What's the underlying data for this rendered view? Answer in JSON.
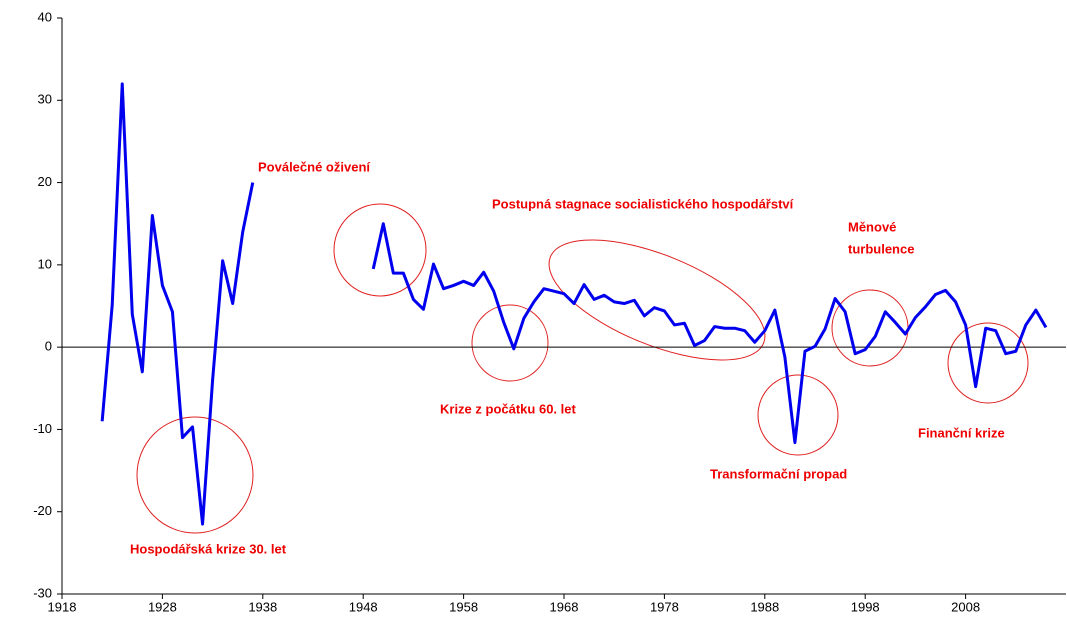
{
  "chart_data": {
    "type": "line",
    "x": [
      1922,
      1923,
      1924,
      1925,
      1926,
      1927,
      1928,
      1929,
      1930,
      1931,
      1932,
      1933,
      1934,
      1935,
      1936,
      1937,
      1938,
      1939,
      1940,
      1941,
      1942,
      1943,
      1944,
      1945,
      1946,
      1947,
      1948,
      1949,
      1950,
      1951,
      1952,
      1953,
      1954,
      1955,
      1956,
      1957,
      1958,
      1959,
      1960,
      1961,
      1962,
      1963,
      1964,
      1965,
      1966,
      1967,
      1968,
      1969,
      1970,
      1971,
      1972,
      1973,
      1974,
      1975,
      1976,
      1977,
      1978,
      1979,
      1980,
      1981,
      1982,
      1983,
      1984,
      1985,
      1986,
      1987,
      1988,
      1989,
      1990,
      1991,
      1992,
      1993,
      1994,
      1995,
      1996,
      1997,
      1998,
      1999,
      2000,
      2001,
      2002,
      2003,
      2004,
      2005,
      2006,
      2007,
      2008,
      2009,
      2010,
      2011,
      2012,
      2013,
      2014,
      2015,
      2016
    ],
    "series": [
      {
        "color": "#0000ee",
        "values": [
          -9,
          5.1,
          32,
          4,
          -3,
          16,
          7.5,
          4.3,
          -11,
          -9.7,
          -21.5,
          -4,
          10.5,
          5.3,
          14,
          20,
          null,
          null,
          null,
          null,
          null,
          null,
          null,
          null,
          null,
          null,
          null,
          9.5,
          15,
          9,
          9,
          5.8,
          4.6,
          10.1,
          7.1,
          7.5,
          8,
          7.5,
          9.1,
          6.8,
          3,
          -0.2,
          3.5,
          5.5,
          7.1,
          6.8,
          6.5,
          5.3,
          7.6,
          5.8,
          6.3,
          5.5,
          5.3,
          5.7,
          3.8,
          4.8,
          4.4,
          2.7,
          2.9,
          0.2,
          0.8,
          2.5,
          2.3,
          2.3,
          2,
          0.6,
          2,
          4.5,
          -1.2,
          -11.6,
          -0.5,
          0.1,
          2.2,
          5.9,
          4.3,
          -0.8,
          -0.3,
          1.3,
          4.3,
          3,
          1.6,
          3.6,
          4.9,
          6.4,
          6.9,
          5.5,
          2.7,
          -4.8,
          2.3,
          2,
          -0.8,
          -0.5,
          2.7,
          4.5,
          2.4
        ]
      }
    ],
    "xlim": [
      1918,
      2018
    ],
    "xticks": [
      1918,
      1928,
      1938,
      1948,
      1958,
      1968,
      1978,
      1988,
      1998,
      2008
    ],
    "ylim": [
      -30,
      40
    ],
    "yticks": [
      -30,
      -20,
      -10,
      0,
      10,
      20,
      30,
      40
    ],
    "annotations": [
      "Poválečné oživení",
      "Postupná stagnace socialistického hospodářství",
      "Měnové",
      "turbulence",
      "Krize z počátku 60. let",
      "Transformační propad",
      "Finanční krize",
      "Hospodářská krize 30. let"
    ]
  }
}
